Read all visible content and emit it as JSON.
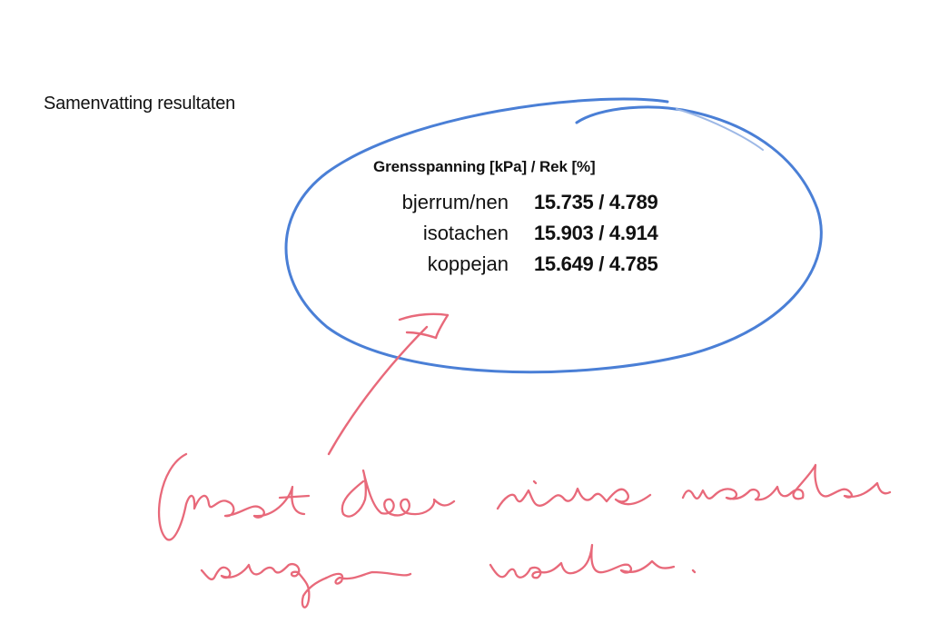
{
  "document": {
    "heading": "Samenvatting resultaten",
    "table": {
      "header": "Grensspanning [kPa] / Rek [%]",
      "rows": [
        {
          "method": "bjerrum/nen",
          "value": "15.735 / 4.789"
        },
        {
          "method": "isotachen",
          "value": "15.903 / 4.914"
        },
        {
          "method": "koppejan",
          "value": "15.649 / 4.785"
        }
      ]
    }
  },
  "annotations": {
    "ellipse_color": "#4a7fd6",
    "pen_color": "#e8697a",
    "handwritten_note": "Moet door nieuwe waarden vervangen worden."
  }
}
